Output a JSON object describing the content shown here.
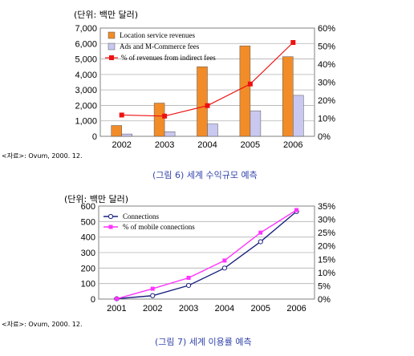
{
  "chart1": {
    "unit_label": "(단위: 백만 달러)",
    "source": "<자료>: Ovum, 2000. 12.",
    "caption": "(그림 6) 세계 수익규모 예측",
    "chart_data": {
      "type": "bar",
      "categories": [
        "2002",
        "2003",
        "2004",
        "2005",
        "2006"
      ],
      "series": [
        {
          "name": "Location service revenues",
          "kind": "bar",
          "axis": "left",
          "color": "#f28c28",
          "values": [
            700,
            2150,
            4500,
            5850,
            5150
          ]
        },
        {
          "name": "Ads and M-Commerce fees",
          "kind": "bar",
          "axis": "left",
          "color": "#c8c8f0",
          "values": [
            150,
            300,
            800,
            1650,
            2650
          ]
        },
        {
          "name": "% of revenues from indirect fees",
          "kind": "line",
          "axis": "right",
          "color": "#ee1111",
          "values": [
            11.8,
            11.2,
            17.0,
            29.0,
            52.0
          ]
        }
      ],
      "ylim": [
        0,
        7000
      ],
      "yticks": [
        "0",
        "1,000",
        "2,000",
        "3,000",
        "4,000",
        "5,000",
        "6,000",
        "7,000"
      ],
      "y2lim": [
        0,
        60
      ],
      "y2ticks": [
        "0%",
        "10%",
        "20%",
        "30%",
        "40%",
        "50%",
        "60%"
      ],
      "legend_position": "top-left"
    }
  },
  "chart2": {
    "unit_label": "(단위: 백만 달러)",
    "source": "<자료>: Ovum, 2000. 12.",
    "caption": "(그림 7) 세계 이용률 예측",
    "chart_data": {
      "type": "line",
      "x": [
        "2001",
        "2002",
        "2003",
        "2004",
        "2005",
        "2006"
      ],
      "series": [
        {
          "name": "Connections",
          "axis": "left",
          "color": "#1a237e",
          "marker": "open-circle",
          "values": [
            2,
            22,
            88,
            200,
            370,
            565
          ]
        },
        {
          "name": "% of mobile connections",
          "axis": "right",
          "color": "#ff33ff",
          "marker": "square",
          "values": [
            0.1,
            3.9,
            8.0,
            14.5,
            25.0,
            33.5
          ]
        }
      ],
      "ylim": [
        0,
        600
      ],
      "yticks": [
        "0",
        "100",
        "200",
        "300",
        "400",
        "500",
        "600"
      ],
      "y2lim": [
        0,
        35
      ],
      "y2ticks": [
        "0%",
        "5%",
        "10%",
        "15%",
        "20%",
        "25%",
        "30%",
        "35%"
      ],
      "legend_position": "top-left"
    }
  }
}
